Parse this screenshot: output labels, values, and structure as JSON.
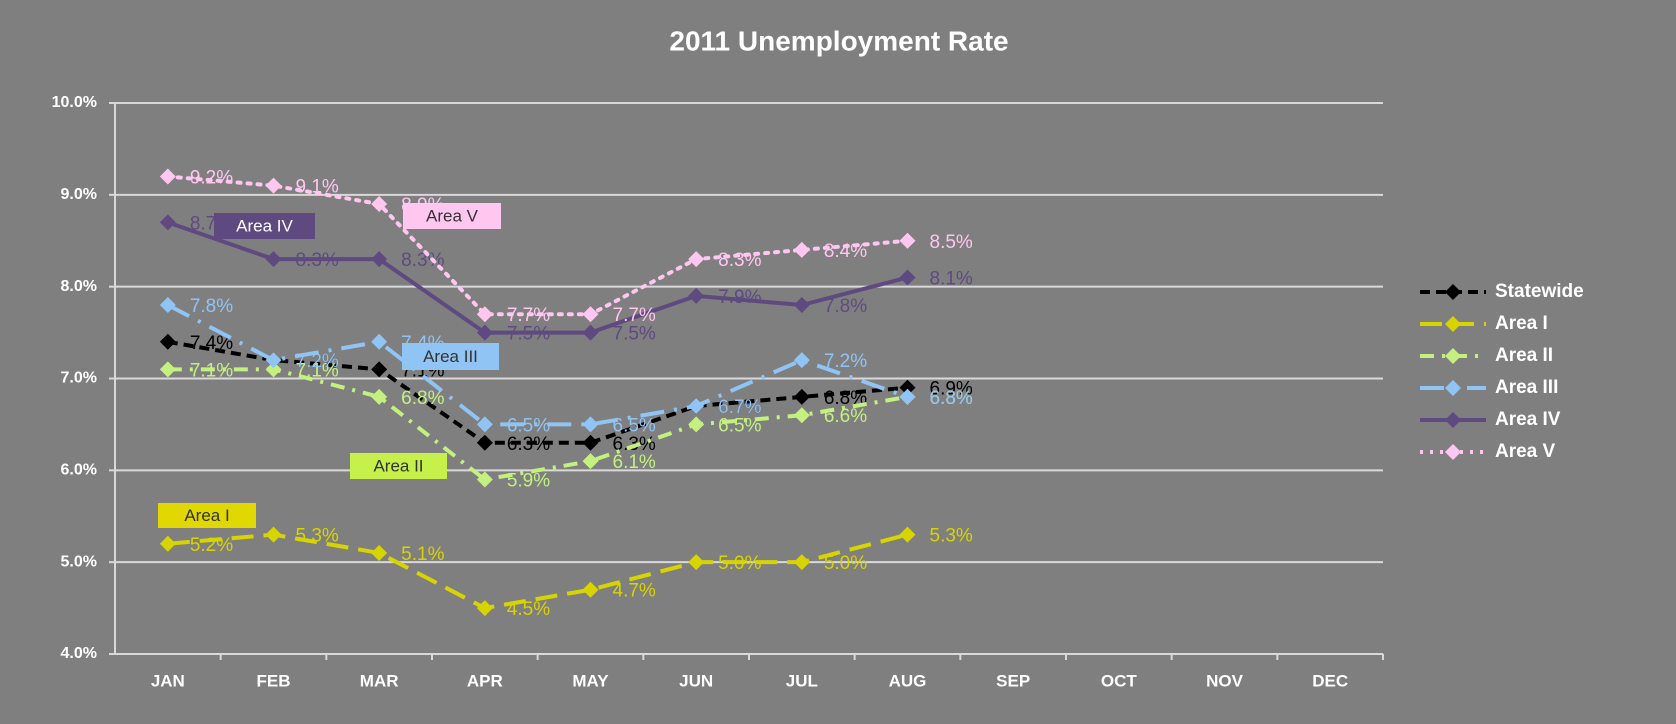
{
  "chart_data": {
    "type": "line",
    "title": "2011 Unemployment Rate",
    "categories": [
      "JAN",
      "FEB",
      "MAR",
      "APR",
      "MAY",
      "JUN",
      "JUL",
      "AUG",
      "SEP",
      "OCT",
      "NOV",
      "DEC"
    ],
    "ylim": [
      4,
      10
    ],
    "yticks": [
      {
        "value": 4,
        "label": "4.0%"
      },
      {
        "value": 5,
        "label": "5.0%"
      },
      {
        "value": 6,
        "label": "6.0%"
      },
      {
        "value": 7,
        "label": "7.0%"
      },
      {
        "value": 8,
        "label": "8.0%"
      },
      {
        "value": 9,
        "label": "9.0%"
      },
      {
        "value": 10,
        "label": "10.0%"
      }
    ],
    "grid": true,
    "legend": "right",
    "series": [
      {
        "name": "Statewide",
        "color": "#000000",
        "dash": "dash",
        "values": [
          7.4,
          7.2,
          7.1,
          6.3,
          6.3,
          6.7,
          6.8,
          6.9,
          null,
          null,
          null,
          null
        ],
        "value_labels": [
          "7.4%",
          "7.2%",
          "7.1%",
          "6.3%",
          "6.3%",
          "6.7%",
          "6.8%",
          "6.9%",
          null,
          null,
          null,
          null
        ]
      },
      {
        "name": "Area I",
        "color": "#d8d400",
        "dash": "longdash",
        "values": [
          5.2,
          5.3,
          5.1,
          4.5,
          4.7,
          5.0,
          5.0,
          5.3,
          null,
          null,
          null,
          null
        ],
        "value_labels": [
          "5.2%",
          "5.3%",
          "5.1%",
          "4.5%",
          "4.7%",
          "5.0%",
          "5.0%",
          "5.3%",
          null,
          null,
          null,
          null
        ]
      },
      {
        "name": "Area II",
        "color": "#c4f080",
        "dash": "dashdot",
        "values": [
          7.1,
          7.1,
          6.8,
          5.9,
          6.1,
          6.5,
          6.6,
          6.8,
          null,
          null,
          null,
          null
        ],
        "value_labels": [
          "7.1%",
          "7.1%",
          "6.8%",
          "5.9%",
          "6.1%",
          "6.5%",
          "6.6%",
          "6.8%",
          null,
          null,
          null,
          null
        ]
      },
      {
        "name": "Area III",
        "color": "#90c4f4",
        "dash": "longdashdot",
        "values": [
          7.8,
          7.2,
          7.4,
          6.5,
          6.5,
          6.7,
          7.2,
          6.8,
          null,
          null,
          null,
          null
        ],
        "value_labels": [
          "7.8%",
          "7.2%",
          "7.4%",
          "6.5%",
          "6.5%",
          "6.7%",
          "7.2%",
          "6.8%",
          null,
          null,
          null,
          null
        ]
      },
      {
        "name": "Area IV",
        "color": "#5e4a80",
        "dash": "solid",
        "values": [
          8.7,
          8.3,
          8.3,
          7.5,
          7.5,
          7.9,
          7.8,
          8.1,
          null,
          null,
          null,
          null
        ],
        "value_labels": [
          "8.7%",
          "8.3%",
          "8.3%",
          "7.5%",
          "7.5%",
          "7.9%",
          "7.8%",
          "8.1%",
          null,
          null,
          null,
          null
        ]
      },
      {
        "name": "Area V",
        "color": "#ffc6f0",
        "dash": "dot",
        "values": [
          9.2,
          9.1,
          8.9,
          7.7,
          7.7,
          8.3,
          8.4,
          8.5,
          null,
          null,
          null,
          null
        ],
        "value_labels": [
          "9.2%",
          "9.1%",
          "8.9%",
          "7.7%",
          "7.7%",
          "8.3%",
          "8.4%",
          "8.5%",
          null,
          null,
          null,
          null
        ]
      }
    ],
    "annotations": [
      {
        "text": "Area IV",
        "color": "#5e4a80"
      },
      {
        "text": "Area V",
        "color": "#ffc6f0"
      },
      {
        "text": "Area III",
        "color": "#90c4f4"
      },
      {
        "text": "Area II",
        "color": "#c6f04a"
      },
      {
        "text": "Area I",
        "color": "#e0d800"
      }
    ]
  }
}
